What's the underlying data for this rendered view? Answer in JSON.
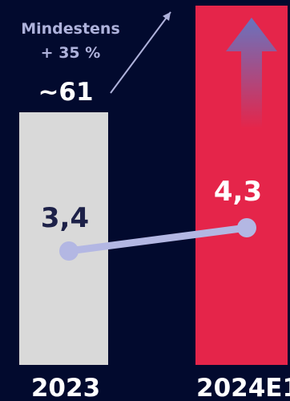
{
  "chart_data": {
    "type": "bar",
    "categories": [
      "2023",
      "2024E1"
    ],
    "bars": [
      {
        "category": "2023",
        "top_label": "~61",
        "point_label": "3,4",
        "color": "#d9d9d9",
        "label_color": "#1d2148"
      },
      {
        "category": "2024E1",
        "point_label": "4,3",
        "color": "#e5254a",
        "label_color": "#ffffff"
      }
    ],
    "line_series": {
      "values": [
        3.4,
        4.3
      ],
      "color": "#b3b7e3"
    },
    "growth_annotation": {
      "line1": "Mindestens",
      "line2": "+ 35 %",
      "color": "#aeb2db"
    },
    "colors": {
      "background": "#020a2e",
      "axis_labels": "#ffffff",
      "arrow_top": "#6874bf",
      "arrow_bottom": "#e5254a"
    }
  }
}
